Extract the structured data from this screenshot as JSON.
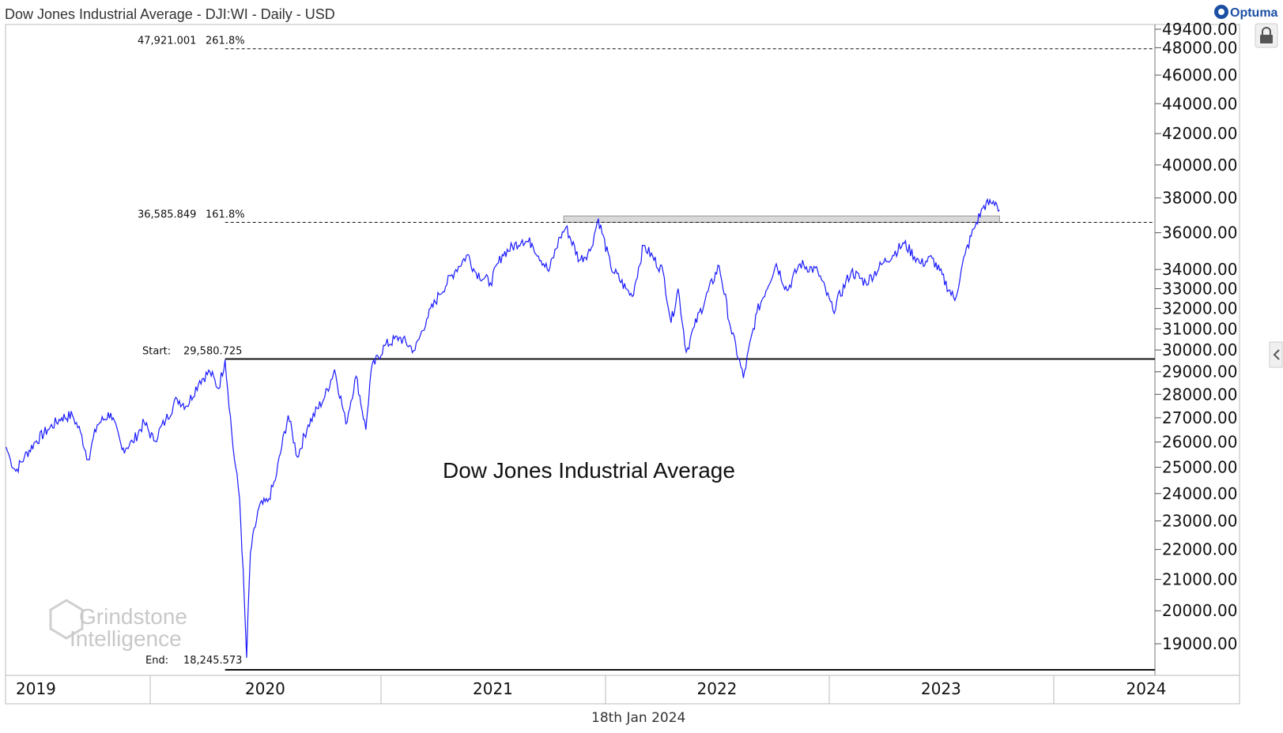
{
  "header": {
    "title": "Dow Jones Industrial Average - DJI:WI - Daily - USD",
    "brand": "Optuma"
  },
  "footer": {
    "date": "18th Jan 2024"
  },
  "annotation": "Dow Jones Industrial Average",
  "watermark": {
    "line1": "Grindstone",
    "line2": "Intelligence"
  },
  "colors": {
    "price_line": "#1a1aff",
    "resistance_band": "#d9d9d9",
    "axis": "#555555"
  },
  "icons": {
    "lock": "lock-icon",
    "collapse": "chevron-left-icon"
  },
  "chart_data": {
    "type": "line",
    "scale": "log",
    "x_range": [
      "2019-01-01",
      "2024-11-01"
    ],
    "y_range": [
      18245.573,
      49400
    ],
    "y_ticks": [
      {
        "value": 49400,
        "label": "49400.00"
      },
      {
        "value": 48000,
        "label": "48000.00"
      },
      {
        "value": 46000,
        "label": "46000.00"
      },
      {
        "value": 44000,
        "label": "44000.00"
      },
      {
        "value": 42000,
        "label": "42000.00"
      },
      {
        "value": 40000,
        "label": "40000.00"
      },
      {
        "value": 38000,
        "label": "38000.00"
      },
      {
        "value": 36000,
        "label": "36000.00"
      },
      {
        "value": 34000,
        "label": "34000.00"
      },
      {
        "value": 33000,
        "label": "33000.00"
      },
      {
        "value": 32000,
        "label": "32000.00"
      },
      {
        "value": 31000,
        "label": "31000.00"
      },
      {
        "value": 30000,
        "label": "30000.00"
      },
      {
        "value": 29000,
        "label": "29000.00"
      },
      {
        "value": 28000,
        "label": "28000.00"
      },
      {
        "value": 27000,
        "label": "27000.00"
      },
      {
        "value": 26000,
        "label": "26000.00"
      },
      {
        "value": 25000,
        "label": "25000.00"
      },
      {
        "value": 24000,
        "label": "24000.00"
      },
      {
        "value": 23000,
        "label": "23000.00"
      },
      {
        "value": 22000,
        "label": "22000.00"
      },
      {
        "value": 21000,
        "label": "21000.00"
      },
      {
        "value": 20000,
        "label": "20000.00"
      },
      {
        "value": 19000,
        "label": "19000.00"
      }
    ],
    "x_labels": [
      "2019",
      "2020",
      "2021",
      "2022",
      "2023",
      "2024"
    ],
    "fibonacci": {
      "start": {
        "label": "Start:",
        "value_label": "29,580.725",
        "value": 29580.725,
        "date": "2020-02-12"
      },
      "end": {
        "label": "End:",
        "value_label": "18,245.573",
        "value": 18245.573,
        "date": "2020-03-23"
      },
      "levels": [
        {
          "value": 36585.849,
          "value_label": "36,585.849",
          "pct": "161.8%"
        },
        {
          "value": 47921.001,
          "value_label": "47,921.001",
          "pct": "261.8%"
        }
      ]
    },
    "resistance_zone": {
      "from": "2021-11-01",
      "to": "2024-01-18",
      "low": 36585.849,
      "high": 36950
    },
    "series": [
      {
        "points": [
          [
            "2019-01-02",
            25800
          ],
          [
            "2019-01-10",
            25300
          ],
          [
            "2019-01-20",
            24850
          ],
          [
            "2019-02-05",
            25400
          ],
          [
            "2019-02-25",
            26000
          ],
          [
            "2019-03-20",
            26500
          ],
          [
            "2019-04-15",
            27000
          ],
          [
            "2019-05-05",
            27100
          ],
          [
            "2019-05-20",
            26400
          ],
          [
            "2019-06-03",
            25300
          ],
          [
            "2019-06-20",
            26700
          ],
          [
            "2019-07-15",
            27200
          ],
          [
            "2019-08-05",
            25700
          ],
          [
            "2019-08-25",
            26000
          ],
          [
            "2019-09-15",
            26800
          ],
          [
            "2019-10-03",
            26050
          ],
          [
            "2019-10-25",
            26900
          ],
          [
            "2019-11-15",
            27800
          ],
          [
            "2019-12-03",
            27500
          ],
          [
            "2019-12-27",
            28600
          ],
          [
            "2020-01-15",
            29000
          ],
          [
            "2020-01-31",
            28250
          ],
          [
            "2020-02-12",
            29551
          ],
          [
            "2020-02-27",
            25750
          ],
          [
            "2020-03-10",
            23800
          ],
          [
            "2020-03-23",
            18591
          ],
          [
            "2020-03-30",
            21900
          ],
          [
            "2020-04-15",
            23500
          ],
          [
            "2020-05-01",
            23700
          ],
          [
            "2020-05-15",
            24500
          ],
          [
            "2020-06-08",
            27100
          ],
          [
            "2020-06-25",
            25400
          ],
          [
            "2020-07-15",
            26700
          ],
          [
            "2020-08-15",
            27900
          ],
          [
            "2020-09-02",
            29100
          ],
          [
            "2020-09-23",
            26750
          ],
          [
            "2020-10-12",
            28800
          ],
          [
            "2020-10-30",
            26500
          ],
          [
            "2020-11-09",
            29100
          ],
          [
            "2020-12-04",
            30200
          ],
          [
            "2020-12-31",
            30600
          ],
          [
            "2021-01-29",
            29980
          ],
          [
            "2021-02-20",
            31500
          ],
          [
            "2021-03-15",
            32700
          ],
          [
            "2021-04-15",
            34000
          ],
          [
            "2021-05-07",
            34800
          ],
          [
            "2021-05-20",
            33900
          ],
          [
            "2021-06-18",
            33300
          ],
          [
            "2021-07-10",
            34800
          ],
          [
            "2021-08-16",
            35600
          ],
          [
            "2021-09-03",
            35400
          ],
          [
            "2021-10-04",
            33900
          ],
          [
            "2021-10-25",
            35750
          ],
          [
            "2021-11-05",
            36300
          ],
          [
            "2021-11-30",
            34500
          ],
          [
            "2021-12-20",
            35000
          ],
          [
            "2022-01-04",
            36800
          ],
          [
            "2022-01-27",
            34150
          ],
          [
            "2022-02-24",
            33000
          ],
          [
            "2022-03-08",
            32600
          ],
          [
            "2022-03-29",
            35300
          ],
          [
            "2022-05-04",
            33900
          ],
          [
            "2022-05-19",
            31300
          ],
          [
            "2022-06-01",
            33000
          ],
          [
            "2022-06-16",
            29900
          ],
          [
            "2022-07-01",
            31100
          ],
          [
            "2022-08-16",
            34200
          ],
          [
            "2022-09-06",
            31100
          ],
          [
            "2022-09-30",
            28725
          ],
          [
            "2022-10-25",
            31800
          ],
          [
            "2022-11-30",
            34300
          ],
          [
            "2022-12-20",
            32900
          ],
          [
            "2023-01-13",
            34300
          ],
          [
            "2023-02-15",
            33900
          ],
          [
            "2023-03-15",
            31900
          ],
          [
            "2023-04-18",
            33900
          ],
          [
            "2023-05-15",
            33300
          ],
          [
            "2023-06-15",
            34300
          ],
          [
            "2023-07-25",
            35400
          ],
          [
            "2023-08-25",
            34300
          ],
          [
            "2023-09-15",
            34600
          ],
          [
            "2023-10-27",
            32400
          ],
          [
            "2023-11-15",
            34800
          ],
          [
            "2023-12-01",
            36200
          ],
          [
            "2023-12-20",
            37550
          ],
          [
            "2024-01-02",
            37700
          ],
          [
            "2024-01-11",
            37750
          ],
          [
            "2024-01-18",
            37300
          ]
        ]
      }
    ]
  }
}
